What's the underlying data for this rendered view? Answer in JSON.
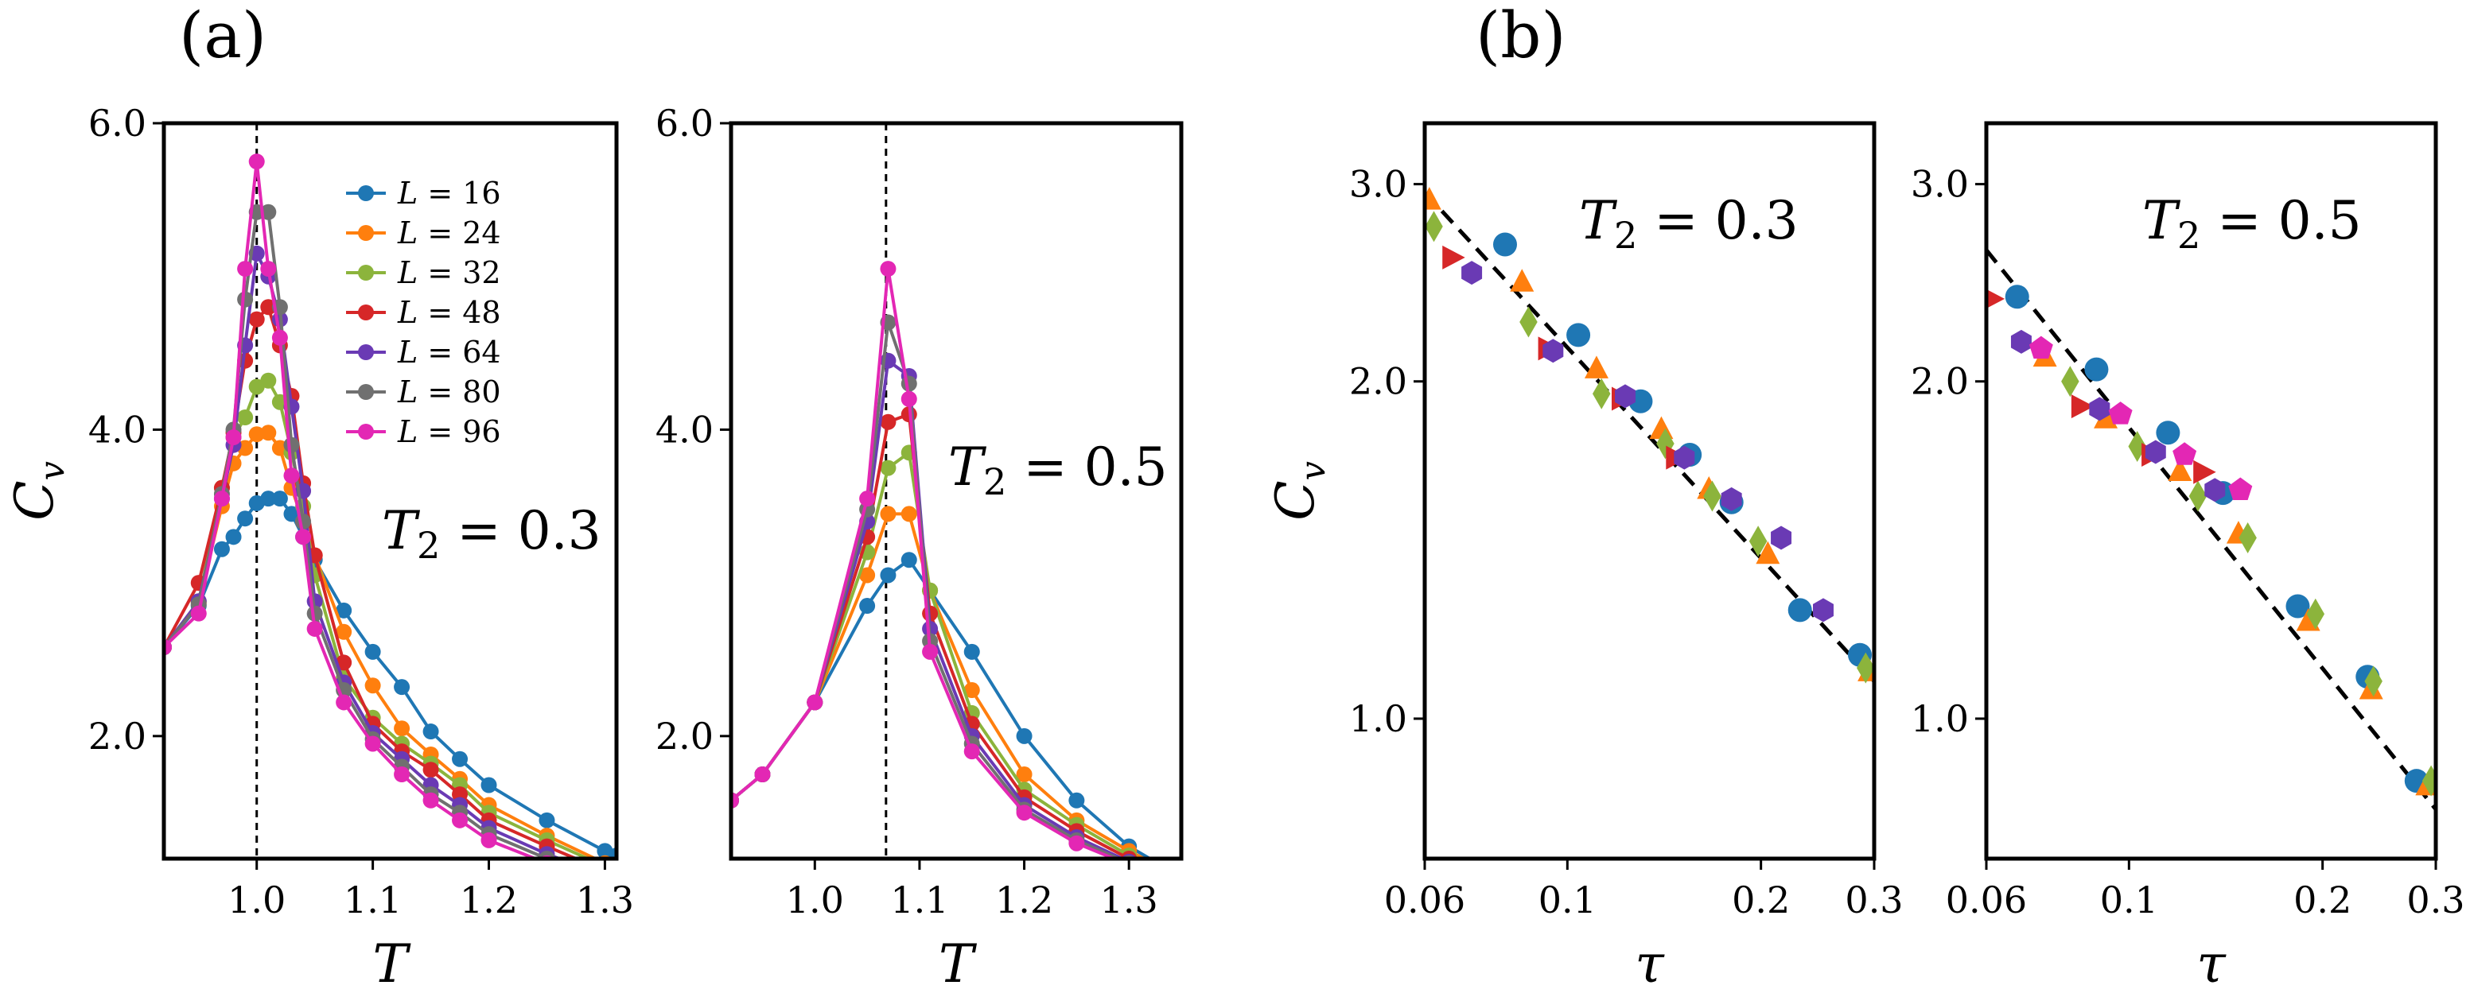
{
  "panel_labels": [
    "(a)",
    "(b)"
  ],
  "colors": {
    "L16": "#1f77b4",
    "L24": "#ff7f0e",
    "L32": "#8cb43c",
    "L48": "#d62728",
    "L64": "#6a3ab4",
    "L80": "#707070",
    "L96": "#e327b4"
  },
  "chart_data": [
    {
      "type": "line",
      "xlabel": "T",
      "ylabel": "C_v",
      "xlim": [
        0.92,
        1.31
      ],
      "ylim": [
        1.2,
        6.0
      ],
      "xticks": [
        1.0,
        1.1,
        1.2,
        1.3
      ],
      "xtick_labels": [
        "1.0",
        "1.1",
        "1.2",
        "1.3"
      ],
      "yticks": [
        2.0,
        4.0,
        6.0
      ],
      "ytick_labels": [
        "2.0",
        "4.0",
        "6.0"
      ],
      "vline": 1.0,
      "annotation": "T_2 = 0.3",
      "legend_position": "upper-center",
      "series": [
        {
          "name": "L = 16",
          "color": "#1f77b4",
          "x": [
            0.92,
            0.95,
            0.97,
            0.98,
            0.99,
            1.0,
            1.01,
            1.02,
            1.03,
            1.04,
            1.05,
            1.075,
            1.1,
            1.125,
            1.15,
            1.175,
            1.2,
            1.25,
            1.3,
            1.31
          ],
          "y": [
            2.58,
            2.85,
            3.22,
            3.3,
            3.42,
            3.52,
            3.55,
            3.55,
            3.45,
            3.3,
            3.15,
            2.82,
            2.55,
            2.32,
            2.03,
            1.85,
            1.68,
            1.45,
            1.25,
            1.22
          ]
        },
        {
          "name": "L = 24",
          "color": "#ff7f0e",
          "x": [
            0.92,
            0.95,
            0.97,
            0.98,
            0.99,
            1.0,
            1.01,
            1.02,
            1.03,
            1.04,
            1.05,
            1.075,
            1.1,
            1.125,
            1.15,
            1.175,
            1.2,
            1.25,
            1.3,
            1.31
          ],
          "y": [
            2.58,
            2.87,
            3.5,
            3.78,
            3.88,
            3.97,
            3.98,
            3.88,
            3.62,
            3.4,
            3.18,
            2.68,
            2.33,
            2.05,
            1.88,
            1.72,
            1.55,
            1.35,
            1.17,
            1.15
          ]
        },
        {
          "name": "L = 32",
          "color": "#8cb43c",
          "x": [
            0.92,
            0.95,
            0.97,
            0.98,
            0.99,
            1.0,
            1.01,
            1.02,
            1.03,
            1.04,
            1.05,
            1.075,
            1.1,
            1.125,
            1.15,
            1.175,
            1.2,
            1.25,
            1.3,
            1.31
          ],
          "y": [
            2.58,
            2.88,
            3.62,
            3.95,
            4.08,
            4.28,
            4.32,
            4.18,
            3.85,
            3.5,
            3.05,
            2.38,
            2.12,
            1.95,
            1.82,
            1.68,
            1.5,
            1.32,
            1.15,
            1.13
          ]
        },
        {
          "name": "L = 48",
          "color": "#d62728",
          "x": [
            0.92,
            0.95,
            0.97,
            0.98,
            0.99,
            1.0,
            1.01,
            1.02,
            1.03,
            1.04,
            1.05,
            1.075,
            1.1,
            1.125,
            1.15,
            1.175,
            1.2,
            1.25,
            1.3,
            1.31
          ],
          "y": [
            2.58,
            3.0,
            3.62,
            3.98,
            4.45,
            4.72,
            4.8,
            4.55,
            4.22,
            3.65,
            3.18,
            2.48,
            2.08,
            1.9,
            1.78,
            1.62,
            1.45,
            1.28,
            1.12,
            1.1
          ]
        },
        {
          "name": "L = 64",
          "color": "#6a3ab4",
          "x": [
            0.92,
            0.95,
            0.97,
            0.98,
            0.99,
            1.0,
            1.01,
            1.02,
            1.03,
            1.04,
            1.05,
            1.075,
            1.1,
            1.125,
            1.15,
            1.175,
            1.2,
            1.25,
            1.3,
            1.31
          ],
          "y": [
            2.58,
            2.88,
            3.55,
            3.9,
            4.55,
            5.15,
            5.0,
            4.72,
            4.15,
            3.6,
            2.88,
            2.35,
            2.02,
            1.85,
            1.68,
            1.55,
            1.4,
            1.23,
            1.09,
            1.07
          ]
        },
        {
          "name": "L = 80",
          "color": "#707070",
          "x": [
            0.92,
            0.95,
            0.97,
            0.98,
            0.99,
            1.0,
            1.01,
            1.02,
            1.03,
            1.04,
            1.05,
            1.075,
            1.1,
            1.125,
            1.15,
            1.175,
            1.2,
            1.25,
            1.3,
            1.31
          ],
          "y": [
            2.58,
            2.86,
            3.58,
            4.0,
            4.85,
            5.42,
            5.42,
            4.8,
            3.9,
            3.4,
            2.8,
            2.3,
            1.98,
            1.8,
            1.62,
            1.5,
            1.36,
            1.2,
            1.07,
            1.05
          ]
        },
        {
          "name": "L = 96",
          "color": "#e327b4",
          "x": [
            0.92,
            0.95,
            0.97,
            0.98,
            0.99,
            1.0,
            1.01,
            1.02,
            1.03,
            1.04,
            1.05,
            1.075,
            1.1,
            1.125,
            1.15,
            1.175,
            1.2,
            1.25,
            1.3,
            1.31
          ],
          "y": [
            2.58,
            2.8,
            3.55,
            3.95,
            5.05,
            5.75,
            5.05,
            4.6,
            3.7,
            3.3,
            2.7,
            2.22,
            1.95,
            1.75,
            1.58,
            1.45,
            1.32,
            1.17,
            1.05,
            1.03
          ]
        }
      ]
    },
    {
      "type": "line",
      "xlabel": "T",
      "xlim": [
        0.92,
        1.35
      ],
      "ylim": [
        1.2,
        6.0
      ],
      "xticks": [
        1.0,
        1.1,
        1.2,
        1.3
      ],
      "xtick_labels": [
        "1.0",
        "1.1",
        "1.2",
        "1.3"
      ],
      "yticks": [
        2.0,
        4.0,
        6.0
      ],
      "ytick_labels": [
        "2.0",
        "4.0",
        "6.0"
      ],
      "vline": 1.068,
      "annotation": "T_2 = 0.5",
      "series": [
        {
          "name": "L = 16",
          "color": "#1f77b4",
          "x": [
            0.92,
            0.95,
            1.0,
            1.05,
            1.07,
            1.09,
            1.11,
            1.15,
            1.2,
            1.25,
            1.3,
            1.35
          ],
          "y": [
            1.58,
            1.75,
            2.22,
            2.85,
            3.05,
            3.15,
            2.95,
            2.55,
            2.0,
            1.58,
            1.28,
            1.08
          ]
        },
        {
          "name": "L = 24",
          "color": "#ff7f0e",
          "x": [
            0.92,
            0.95,
            1.0,
            1.05,
            1.07,
            1.09,
            1.11,
            1.15,
            1.2,
            1.25,
            1.3,
            1.35
          ],
          "y": [
            1.58,
            1.75,
            2.22,
            3.05,
            3.45,
            3.45,
            2.95,
            2.3,
            1.75,
            1.45,
            1.25,
            1.08
          ]
        },
        {
          "name": "L = 32",
          "color": "#8cb43c",
          "x": [
            0.92,
            0.95,
            1.0,
            1.05,
            1.07,
            1.09,
            1.11,
            1.15,
            1.2,
            1.25,
            1.3,
            1.35
          ],
          "y": [
            1.58,
            1.75,
            2.22,
            3.2,
            3.75,
            3.85,
            2.95,
            2.15,
            1.65,
            1.42,
            1.22,
            1.07
          ]
        },
        {
          "name": "L = 48",
          "color": "#d62728",
          "x": [
            0.92,
            0.95,
            1.0,
            1.05,
            1.07,
            1.09,
            1.11,
            1.15,
            1.2,
            1.25,
            1.3,
            1.35
          ],
          "y": [
            1.58,
            1.75,
            2.22,
            3.3,
            4.05,
            4.1,
            2.8,
            2.08,
            1.6,
            1.38,
            1.2,
            1.06
          ]
        },
        {
          "name": "L = 64",
          "color": "#6a3ab4",
          "x": [
            0.92,
            0.95,
            1.0,
            1.05,
            1.07,
            1.09,
            1.11,
            1.15,
            1.2,
            1.25,
            1.3,
            1.35
          ],
          "y": [
            1.58,
            1.75,
            2.22,
            3.4,
            4.45,
            4.35,
            2.7,
            2.0,
            1.55,
            1.34,
            1.18,
            1.05
          ]
        },
        {
          "name": "L = 80",
          "color": "#707070",
          "x": [
            0.92,
            0.95,
            1.0,
            1.05,
            1.07,
            1.09,
            1.11,
            1.15,
            1.2,
            1.25,
            1.3,
            1.35
          ],
          "y": [
            1.58,
            1.75,
            2.22,
            3.48,
            4.7,
            4.3,
            2.62,
            1.95,
            1.52,
            1.32,
            1.17,
            1.05
          ]
        },
        {
          "name": "L = 96",
          "color": "#e327b4",
          "x": [
            0.92,
            0.95,
            1.0,
            1.05,
            1.07,
            1.09,
            1.11,
            1.15,
            1.2,
            1.25,
            1.3,
            1.35
          ],
          "y": [
            1.58,
            1.75,
            2.22,
            3.55,
            5.05,
            4.2,
            2.55,
            1.9,
            1.5,
            1.3,
            1.16,
            1.04
          ]
        }
      ]
    },
    {
      "type": "scatter",
      "xlabel": "τ",
      "ylabel": "C_v",
      "xscale": "log",
      "yscale": "log",
      "xlim": [
        0.06,
        0.3
      ],
      "ylim": [
        0.75,
        3.4
      ],
      "xticks": [
        0.06,
        0.1,
        0.2,
        0.3
      ],
      "xtick_labels": [
        "0.06",
        "0.1",
        "0.2",
        "0.3"
      ],
      "yticks": [
        1.0,
        2.0,
        3.0
      ],
      "ytick_labels": [
        "1.0",
        "2.0",
        "3.0"
      ],
      "annotation": "T_2 = 0.3",
      "fit_line": {
        "x": [
          0.06,
          0.3
        ],
        "y": [
          2.95,
          1.08
        ]
      },
      "series": [
        {
          "name": "L = 16",
          "marker": "circle",
          "color": "#1f77b4",
          "x": [
            0.08,
            0.104,
            0.13,
            0.155,
            0.18,
            0.23,
            0.285
          ],
          "y": [
            2.65,
            2.2,
            1.92,
            1.72,
            1.56,
            1.25,
            1.14
          ]
        },
        {
          "name": "L = 24",
          "marker": "triangle-up",
          "color": "#ff7f0e",
          "x": [
            0.061,
            0.085,
            0.111,
            0.14,
            0.166,
            0.205,
            0.295
          ],
          "y": [
            2.9,
            2.45,
            2.05,
            1.81,
            1.6,
            1.4,
            1.1
          ]
        },
        {
          "name": "L = 32",
          "marker": "diamond",
          "color": "#8cb43c",
          "x": [
            0.062,
            0.087,
            0.113,
            0.142,
            0.168,
            0.198,
            0.291
          ],
          "y": [
            2.75,
            2.26,
            1.95,
            1.76,
            1.58,
            1.44,
            1.11
          ]
        },
        {
          "name": "L = 48",
          "marker": "triangle-right",
          "color": "#d62728",
          "x": [
            0.066,
            0.093,
            0.121,
            0.147
          ],
          "y": [
            2.58,
            2.14,
            1.93,
            1.71
          ]
        },
        {
          "name": "L = 64",
          "marker": "hexagon",
          "color": "#6a3ab4",
          "x": [
            0.071,
            0.095,
            0.123,
            0.152,
            0.18,
            0.215,
            0.25
          ],
          "y": [
            2.5,
            2.13,
            1.94,
            1.71,
            1.57,
            1.45,
            1.25
          ]
        }
      ]
    },
    {
      "type": "scatter",
      "xlabel": "τ",
      "xscale": "log",
      "yscale": "log",
      "xlim": [
        0.06,
        0.3
      ],
      "ylim": [
        0.75,
        3.4
      ],
      "xticks": [
        0.06,
        0.1,
        0.2,
        0.3
      ],
      "xtick_labels": [
        "0.06",
        "0.1",
        "0.2",
        "0.3"
      ],
      "yticks": [
        1.0,
        2.0,
        3.0
      ],
      "ytick_labels": [
        "1.0",
        "2.0",
        "3.0"
      ],
      "annotation": "T_2 = 0.5",
      "fit_line": {
        "x": [
          0.06,
          0.3
        ],
        "y": [
          2.62,
          0.83
        ]
      },
      "series": [
        {
          "name": "L = 16",
          "marker": "circle",
          "color": "#1f77b4",
          "x": [
            0.067,
            0.089,
            0.115,
            0.14,
            0.183,
            0.235,
            0.28
          ],
          "y": [
            2.38,
            2.05,
            1.8,
            1.59,
            1.26,
            1.09,
            0.88
          ]
        },
        {
          "name": "L = 24",
          "marker": "triangle-up",
          "color": "#ff7f0e",
          "x": [
            0.074,
            0.092,
            0.12,
            0.148,
            0.19,
            0.238,
            0.291
          ],
          "y": [
            2.1,
            1.85,
            1.66,
            1.46,
            1.22,
            1.06,
            0.87
          ]
        },
        {
          "name": "L = 32",
          "marker": "diamond",
          "color": "#8cb43c",
          "x": [
            0.081,
            0.103,
            0.128,
            0.153,
            0.195,
            0.24,
            0.295
          ],
          "y": [
            2.0,
            1.75,
            1.58,
            1.45,
            1.24,
            1.08,
            0.88
          ]
        },
        {
          "name": "L = 48",
          "marker": "triangle-right",
          "color": "#d62728",
          "x": [
            0.061,
            0.084,
            0.108,
            0.13
          ],
          "y": [
            2.37,
            1.9,
            1.72,
            1.66
          ]
        },
        {
          "name": "L = 64",
          "marker": "hexagon",
          "color": "#6a3ab4",
          "x": [
            0.068,
            0.09,
            0.11,
            0.136
          ],
          "y": [
            2.17,
            1.89,
            1.73,
            1.6
          ]
        },
        {
          "name": "L = 96",
          "marker": "pentagon",
          "color": "#e327b4",
          "x": [
            0.073,
            0.097,
            0.122,
            0.149
          ],
          "y": [
            2.14,
            1.87,
            1.72,
            1.6
          ]
        }
      ]
    }
  ]
}
